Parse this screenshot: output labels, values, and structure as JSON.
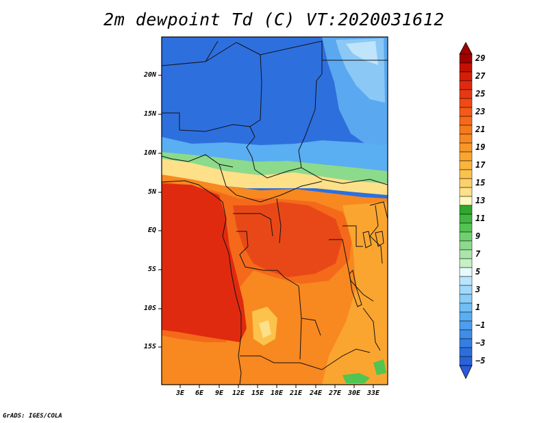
{
  "title": "2m dewpoint Td (C) VT:2020031612",
  "credit": "GrADS: IGES/COLA",
  "map": {
    "region": "Central Africa",
    "lat_labels": [
      "20N",
      "15N",
      "10N",
      "5N",
      "EQ",
      "5S",
      "10S",
      "15S"
    ],
    "lon_labels": [
      "3E",
      "6E",
      "9E",
      "12E",
      "15E",
      "18E",
      "21E",
      "24E",
      "27E",
      "30E",
      "33E"
    ]
  },
  "colorbar": {
    "labels": [
      "29",
      "27",
      "25",
      "23",
      "21",
      "19",
      "17",
      "15",
      "13",
      "11",
      "9",
      "7",
      "5",
      "3",
      "1",
      "−1",
      "−3",
      "−5"
    ],
    "colors": [
      "#a00000",
      "#c41000",
      "#e02a10",
      "#f24a14",
      "#f46a1a",
      "#f88820",
      "#faa530",
      "#fbc24c",
      "#fde088",
      "#fdf8c0",
      "#2ea82e",
      "#52c452",
      "#8cda8c",
      "#c6f0c6",
      "#f0fcff",
      "#b8e6fc",
      "#88cef8",
      "#5aaef2",
      "#3e8ee8",
      "#2d6ede",
      "#2a5ad6"
    ]
  }
}
